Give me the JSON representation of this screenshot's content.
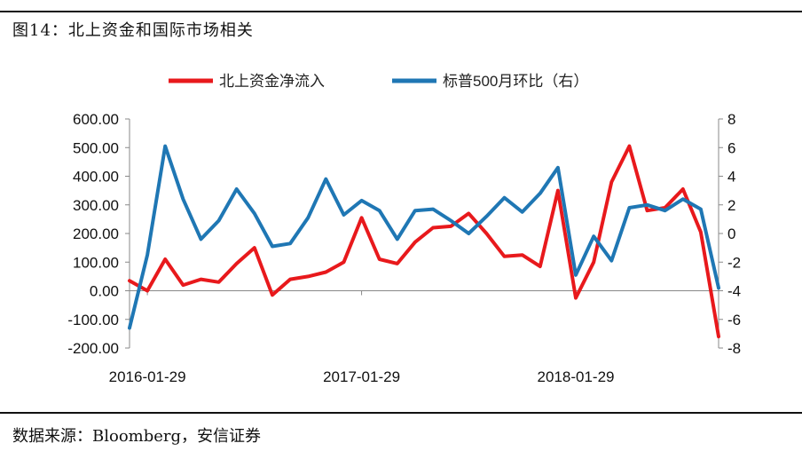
{
  "title": "图14：北上资金和国际市场相关",
  "source": "数据来源：Bloomberg，安信证券",
  "colors": {
    "red": "#e8191c",
    "blue": "#1f77b4",
    "axis": "#888888"
  },
  "chart_data": {
    "type": "line",
    "title": "",
    "xlabel": "",
    "ylabel": "",
    "x_tick_labels": [
      "2016-01-29",
      "2017-01-29",
      "2018-01-29"
    ],
    "x_tick_index": [
      1,
      13,
      25
    ],
    "left_axis": {
      "ylim": [
        -200,
        600
      ],
      "ticks": [
        "600.00",
        "500.00",
        "400.00",
        "300.00",
        "200.00",
        "100.00",
        "0.00",
        "-100.00",
        "-200.00"
      ]
    },
    "right_axis": {
      "ylim": [
        -8,
        8
      ],
      "ticks": [
        "8",
        "6",
        "4",
        "2",
        "0",
        "-2",
        "-4",
        "-6",
        "-8"
      ]
    },
    "legend_position": "top",
    "series": [
      {
        "name": "北上资金净流入",
        "axis": "left",
        "color": "#e8191c",
        "values": [
          35,
          0,
          110,
          20,
          40,
          30,
          95,
          150,
          -15,
          40,
          50,
          65,
          100,
          255,
          110,
          95,
          170,
          220,
          225,
          270,
          200,
          120,
          125,
          85,
          350,
          -25,
          100,
          380,
          505,
          280,
          290,
          355,
          205,
          -160
        ]
      },
      {
        "name": "标普500月环比（右）",
        "axis": "right",
        "color": "#1f77b4",
        "values": [
          -6.6,
          -1.5,
          6.1,
          2.4,
          -0.4,
          0.9,
          3.1,
          1.4,
          -0.9,
          -0.7,
          1.1,
          3.8,
          1.3,
          2.3,
          1.6,
          -0.4,
          1.6,
          1.7,
          0.9,
          0.0,
          1.2,
          2.5,
          1.5,
          2.8,
          4.6,
          -2.9,
          -0.2,
          -1.9,
          1.8,
          2.0,
          1.6,
          2.4,
          1.7,
          -3.8
        ]
      }
    ]
  }
}
